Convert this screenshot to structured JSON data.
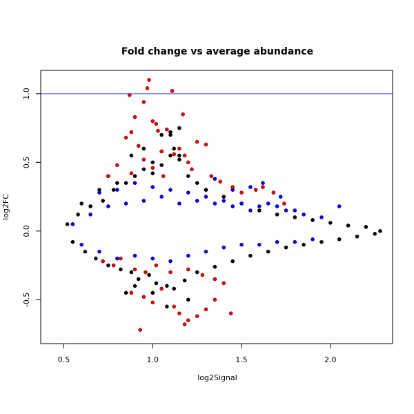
{
  "chart_data": {
    "type": "scatter",
    "title": "Fold change vs average abundance",
    "xlabel": "log2Signal",
    "ylabel": "log2FC",
    "xlim": [
      0.37,
      2.35
    ],
    "ylim": [
      -0.82,
      1.17
    ],
    "x_ticks": [
      0.5,
      1.0,
      1.5,
      2.0
    ],
    "x_tick_labels": [
      "0.5",
      "1.0",
      "1.5",
      "2.0"
    ],
    "y_ticks": [
      -0.5,
      0.0,
      0.5,
      1.0
    ],
    "y_tick_labels": [
      "-0.5",
      "0.0",
      "0.5",
      "1.0"
    ],
    "grid": false,
    "reference_lines": [
      {
        "y": 1.0,
        "color": "#3333ff"
      }
    ],
    "colors": {
      "black": "#000000",
      "blue": "#0000ff",
      "red": "#ee0000",
      "refline": "#4444ff"
    },
    "series": [
      {
        "color": "#000000",
        "note_points": [],
        "x": [
          0.52,
          0.55,
          0.58,
          0.62,
          0.65,
          0.68,
          0.72,
          0.75,
          0.78,
          0.82,
          0.85,
          0.88,
          0.9,
          0.92,
          0.95,
          0.98,
          1.0,
          1.02,
          1.05,
          1.08,
          1.1,
          1.12,
          1.15,
          1.18,
          1.2,
          1.25,
          1.3,
          1.35,
          1.4,
          1.45,
          1.5,
          1.55,
          1.6,
          1.65,
          1.7,
          1.75,
          1.8,
          1.85,
          1.9,
          1.95,
          2.0,
          2.05,
          2.1,
          2.15,
          2.2,
          2.25,
          2.28,
          0.6,
          0.7,
          0.8,
          0.9,
          1.0,
          1.1,
          1.2,
          1.3,
          0.85,
          0.95,
          1.05,
          1.15,
          0.75,
          0.88,
          1.0,
          1.12,
          1.25,
          1.05,
          1.1,
          1.15,
          1.08
        ],
        "y": [
          0.05,
          -0.08,
          0.12,
          -0.15,
          0.18,
          -0.2,
          0.22,
          -0.25,
          0.3,
          -0.28,
          0.35,
          -0.3,
          0.4,
          -0.35,
          0.45,
          -0.32,
          0.5,
          -0.38,
          0.48,
          -0.4,
          0.55,
          -0.42,
          0.52,
          -0.36,
          0.4,
          -0.3,
          0.3,
          -0.26,
          0.25,
          -0.22,
          0.2,
          -0.18,
          0.15,
          -0.15,
          0.12,
          -0.12,
          0.1,
          -0.1,
          0.08,
          -0.08,
          0.06,
          -0.06,
          0.04,
          -0.04,
          0.03,
          -0.02,
          0.0,
          0.2,
          0.3,
          0.35,
          -0.4,
          -0.45,
          0.7,
          -0.5,
          0.3,
          -0.45,
          0.6,
          0.58,
          0.55,
          0.4,
          0.55,
          0.42,
          0.6,
          0.35,
          0.7,
          0.72,
          0.75,
          -0.55
        ]
      },
      {
        "color": "#0000ff",
        "x": [
          0.55,
          0.6,
          0.65,
          0.7,
          0.75,
          0.8,
          0.85,
          0.9,
          0.95,
          1.0,
          1.05,
          1.1,
          1.15,
          1.2,
          1.25,
          1.3,
          1.35,
          1.4,
          1.45,
          1.5,
          1.55,
          1.6,
          1.65,
          1.7,
          1.75,
          1.8,
          1.85,
          1.9,
          1.95,
          2.05,
          0.7,
          0.8,
          0.9,
          1.0,
          1.1,
          1.2,
          1.3,
          1.4,
          1.5,
          1.6,
          1.7,
          1.8,
          1.35,
          1.45,
          1.55,
          1.62,
          1.72
        ],
        "y": [
          0.05,
          -0.1,
          0.12,
          -0.15,
          0.18,
          -0.2,
          0.2,
          -0.18,
          0.22,
          -0.2,
          0.25,
          -0.22,
          0.2,
          -0.18,
          0.22,
          -0.15,
          0.2,
          -0.12,
          0.18,
          -0.1,
          0.15,
          -0.1,
          0.2,
          -0.08,
          0.15,
          -0.08,
          0.12,
          -0.06,
          0.1,
          0.18,
          0.28,
          0.3,
          0.35,
          0.32,
          0.3,
          0.28,
          0.25,
          0.22,
          0.2,
          0.18,
          0.18,
          0.15,
          0.38,
          0.3,
          0.32,
          0.35,
          0.25
        ]
      },
      {
        "color": "#ee0000",
        "x": [
          0.87,
          0.97,
          0.98,
          1.11,
          0.9,
          0.95,
          1.0,
          1.02,
          1.08,
          1.17,
          1.03,
          0.85,
          0.88,
          0.92,
          1.05,
          1.12,
          1.15,
          1.2,
          1.25,
          1.3,
          0.75,
          0.8,
          0.88,
          0.95,
          1.0,
          1.06,
          1.18,
          1.22,
          1.33,
          1.38,
          1.45,
          1.5,
          1.58,
          1.62,
          1.68,
          1.74,
          0.72,
          0.78,
          0.82,
          0.9,
          0.96,
          1.02,
          1.1,
          1.2,
          1.28,
          1.35,
          1.4,
          1.44,
          0.88,
          0.95,
          1.0,
          1.05,
          1.12,
          1.18,
          1.2,
          1.25,
          1.3,
          1.35,
          0.93,
          1.15
        ],
        "y": [
          0.99,
          1.04,
          1.1,
          1.02,
          0.83,
          0.94,
          0.8,
          0.78,
          0.74,
          0.85,
          0.73,
          0.68,
          0.72,
          0.62,
          0.58,
          0.56,
          0.6,
          0.5,
          0.65,
          0.63,
          0.4,
          0.48,
          0.42,
          0.52,
          0.46,
          0.4,
          0.55,
          0.45,
          0.4,
          0.36,
          0.32,
          0.28,
          0.3,
          0.32,
          0.28,
          0.2,
          -0.22,
          -0.25,
          -0.2,
          -0.28,
          -0.3,
          -0.25,
          -0.3,
          -0.28,
          -0.32,
          -0.35,
          -0.38,
          -0.6,
          -0.45,
          -0.48,
          -0.52,
          -0.42,
          -0.55,
          -0.68,
          -0.65,
          -0.62,
          -0.57,
          -0.5,
          -0.72,
          -0.6
        ]
      }
    ]
  }
}
